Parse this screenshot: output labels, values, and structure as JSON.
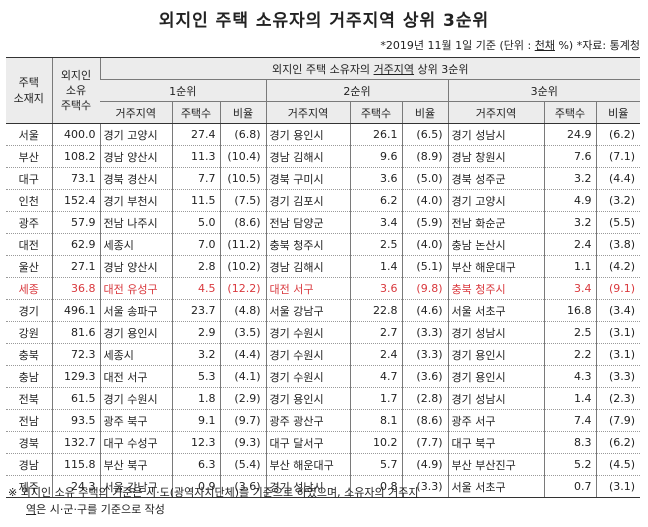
{
  "title": "외지인 주택 소유자의 거주지역 상위 3순위",
  "note": {
    "prefix": "*2019년 11월 1일 기준 (단위 : ",
    "unit_underlined": "천채",
    "suffix": " %) *자료: 통계청"
  },
  "header": {
    "col_region": "주택\n소재지",
    "col_total": "외지인\n소유\n주택수",
    "group_title_prefix": "외지인 주택 소유자의 ",
    "group_title_underlined": "거주지역",
    "group_title_suffix": " 상위 3순위",
    "rank1": "1순위",
    "rank2": "2순위",
    "rank3": "3순위",
    "sub_place": "거주지역",
    "sub_count": "주택수",
    "sub_ratio": "비율"
  },
  "rows": [
    {
      "region": "서울",
      "total": "400.0",
      "r1p": "경기 고양시",
      "r1c": "27.4",
      "r1r": "(6.8)",
      "r2p": "경기 용인시",
      "r2c": "26.1",
      "r2r": "(6.5)",
      "r3p": "경기 성남시",
      "r3c": "24.9",
      "r3r": "(6.2)"
    },
    {
      "region": "부산",
      "total": "108.2",
      "r1p": "경남 양산시",
      "r1c": "11.3",
      "r1r": "(10.4)",
      "r2p": "경남 김해시",
      "r2c": "9.6",
      "r2r": "(8.9)",
      "r3p": "경남 창원시",
      "r3c": "7.6",
      "r3r": "(7.1)"
    },
    {
      "region": "대구",
      "total": "73.1",
      "r1p": "경북 경산시",
      "r1c": "7.7",
      "r1r": "(10.5)",
      "r2p": "경북 구미시",
      "r2c": "3.6",
      "r2r": "(5.0)",
      "r3p": "경북 성주군",
      "r3c": "3.2",
      "r3r": "(4.4)"
    },
    {
      "region": "인천",
      "total": "152.4",
      "r1p": "경기 부천시",
      "r1c": "11.5",
      "r1r": "(7.5)",
      "r2p": "경기 김포시",
      "r2c": "6.2",
      "r2r": "(4.0)",
      "r3p": "경기 고양시",
      "r3c": "4.9",
      "r3r": "(3.2)"
    },
    {
      "region": "광주",
      "total": "57.9",
      "r1p": "전남 나주시",
      "r1c": "5.0",
      "r1r": "(8.6)",
      "r2p": "전남 담양군",
      "r2c": "3.4",
      "r2r": "(5.9)",
      "r3p": "전남 화순군",
      "r3c": "3.2",
      "r3r": "(5.5)"
    },
    {
      "region": "대전",
      "total": "62.9",
      "r1p": "세종시",
      "r1c": "7.0",
      "r1r": "(11.2)",
      "r2p": "충북 청주시",
      "r2c": "2.5",
      "r2r": "(4.0)",
      "r3p": "충남 논산시",
      "r3c": "2.4",
      "r3r": "(3.8)"
    },
    {
      "region": "울산",
      "total": "27.1",
      "r1p": "경남 양산시",
      "r1c": "2.8",
      "r1r": "(10.2)",
      "r2p": "경남 김해시",
      "r2c": "1.4",
      "r2r": "(5.1)",
      "r3p": "부산 해운대구",
      "r3c": "1.1",
      "r3r": "(4.2)"
    },
    {
      "region": "세종",
      "total": "36.8",
      "r1p": "대전 유성구",
      "r1c": "4.5",
      "r1r": "(12.2)",
      "r2p": "대전 서구",
      "r2c": "3.6",
      "r2r": "(9.8)",
      "r3p": "충북 청주시",
      "r3c": "3.4",
      "r3r": "(9.1)",
      "highlight": true
    },
    {
      "region": "경기",
      "total": "496.1",
      "r1p": "서울 송파구",
      "r1c": "23.7",
      "r1r": "(4.8)",
      "r2p": "서울 강남구",
      "r2c": "22.8",
      "r2r": "(4.6)",
      "r3p": "서울 서초구",
      "r3c": "16.8",
      "r3r": "(3.4)"
    },
    {
      "region": "강원",
      "total": "81.6",
      "r1p": "경기 용인시",
      "r1c": "2.9",
      "r1r": "(3.5)",
      "r2p": "경기 수원시",
      "r2c": "2.7",
      "r2r": "(3.3)",
      "r3p": "경기 성남시",
      "r3c": "2.5",
      "r3r": "(3.1)"
    },
    {
      "region": "충북",
      "total": "72.3",
      "r1p": "세종시",
      "r1c": "3.2",
      "r1r": "(4.4)",
      "r2p": "경기 수원시",
      "r2c": "2.4",
      "r2r": "(3.3)",
      "r3p": "경기 용인시",
      "r3c": "2.2",
      "r3r": "(3.1)"
    },
    {
      "region": "충남",
      "total": "129.3",
      "r1p": "대전 서구",
      "r1c": "5.3",
      "r1r": "(4.1)",
      "r2p": "경기 수원시",
      "r2c": "4.7",
      "r2r": "(3.6)",
      "r3p": "경기 용인시",
      "r3c": "4.3",
      "r3r": "(3.3)"
    },
    {
      "region": "전북",
      "total": "61.5",
      "r1p": "경기 수원시",
      "r1c": "1.8",
      "r1r": "(2.9)",
      "r2p": "경기 용인시",
      "r2c": "1.7",
      "r2r": "(2.8)",
      "r3p": "경기 성남시",
      "r3c": "1.4",
      "r3r": "(2.3)"
    },
    {
      "region": "전남",
      "total": "93.5",
      "r1p": "광주 북구",
      "r1c": "9.1",
      "r1r": "(9.7)",
      "r2p": "광주 광산구",
      "r2c": "8.1",
      "r2r": "(8.6)",
      "r3p": "광주 서구",
      "r3c": "7.4",
      "r3r": "(7.9)"
    },
    {
      "region": "경북",
      "total": "132.7",
      "r1p": "대구 수성구",
      "r1c": "12.3",
      "r1r": "(9.3)",
      "r2p": "대구 달서구",
      "r2c": "10.2",
      "r2r": "(7.7)",
      "r3p": "대구 북구",
      "r3c": "8.3",
      "r3r": "(6.2)"
    },
    {
      "region": "경남",
      "total": "115.8",
      "r1p": "부산 북구",
      "r1c": "6.3",
      "r1r": "(5.4)",
      "r2p": "부산 해운대구",
      "r2c": "5.7",
      "r2r": "(4.9)",
      "r3p": "부산 부산진구",
      "r3c": "5.2",
      "r3r": "(4.5)"
    },
    {
      "region": "제주",
      "total": "24.3",
      "r1p": "서울 강남구",
      "r1c": "0.9",
      "r1r": "(3.6)",
      "r2p": "경기 성남시",
      "r2c": "0.8",
      "r2r": "(3.3)",
      "r3p": "서울 서초구",
      "r3c": "0.7",
      "r3r": "(3.1)"
    }
  ],
  "footnote": {
    "line1_prefix": "※ 외지인 소유 주택의 기준은 시·도(광역자치단체)를 기준으로 하였으며, 소유자의 ",
    "line1_underlined": "거주지",
    "line2_underlined": "역",
    "line2_suffix": "은 시·군·구를 기준으로 작성"
  },
  "colors": {
    "highlight_text": "#d9383d",
    "header_bg": "#ececec"
  }
}
